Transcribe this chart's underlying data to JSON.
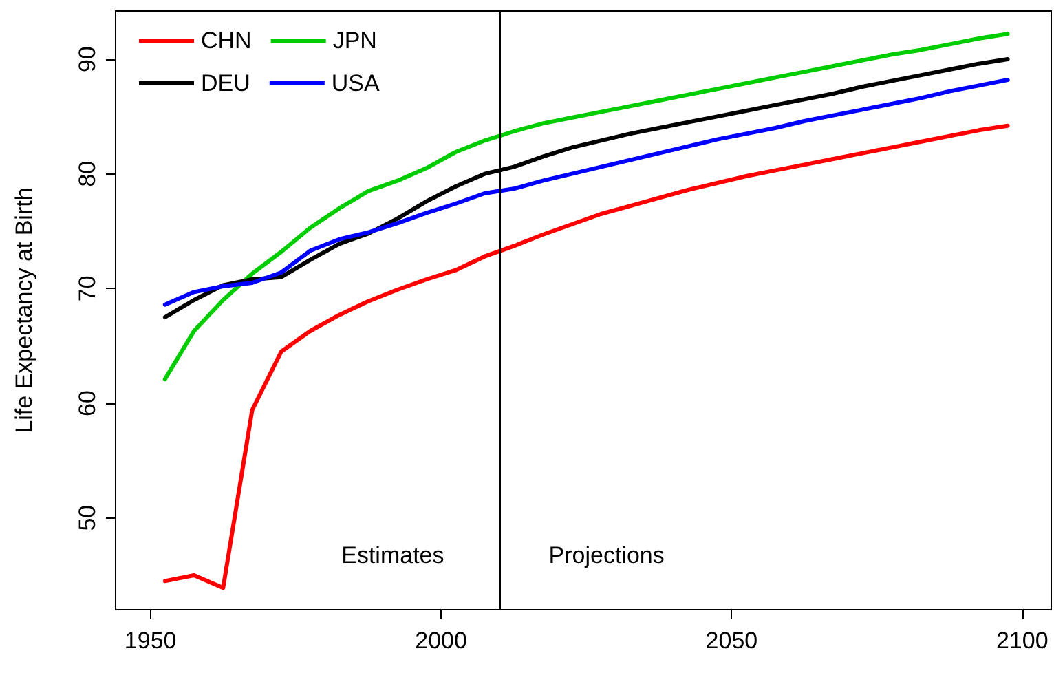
{
  "chart_data": {
    "type": "line",
    "ylabel": "Life Expectancy at Birth",
    "x": [
      1952.5,
      1957.5,
      1962.5,
      1967.5,
      1972.5,
      1977.5,
      1982.5,
      1987.5,
      1992.5,
      1997.5,
      2002.5,
      2007.5,
      2012.5,
      2017.5,
      2022.5,
      2027.5,
      2032.5,
      2037.5,
      2042.5,
      2047.5,
      2052.5,
      2057.5,
      2062.5,
      2067.5,
      2072.5,
      2077.5,
      2082.5,
      2087.5,
      2092.5,
      2097.5
    ],
    "series": [
      {
        "name": "CHN",
        "color": "#ff0000",
        "values": [
          44.5,
          45.0,
          43.9,
          59.4,
          64.5,
          66.3,
          67.7,
          68.9,
          69.9,
          70.8,
          71.6,
          72.8,
          73.7,
          74.7,
          75.6,
          76.5,
          77.2,
          77.9,
          78.6,
          79.2,
          79.8,
          80.3,
          80.8,
          81.3,
          81.8,
          82.3,
          82.8,
          83.3,
          83.8,
          84.2
        ]
      },
      {
        "name": "JPN",
        "color": "#00cd00",
        "values": [
          62.1,
          66.3,
          69.0,
          71.3,
          73.2,
          75.3,
          77.0,
          78.5,
          79.4,
          80.5,
          81.9,
          82.9,
          83.7,
          84.4,
          84.9,
          85.4,
          85.9,
          86.4,
          86.9,
          87.4,
          87.9,
          88.4,
          88.9,
          89.4,
          89.9,
          90.4,
          90.8,
          91.3,
          91.8,
          92.2
        ]
      },
      {
        "name": "DEU",
        "color": "#000000",
        "values": [
          67.5,
          69.0,
          70.3,
          70.8,
          71.0,
          72.5,
          73.9,
          74.8,
          76.1,
          77.6,
          78.9,
          80.0,
          80.6,
          81.5,
          82.3,
          82.9,
          83.5,
          84.0,
          84.5,
          85.0,
          85.5,
          86.0,
          86.5,
          87.0,
          87.6,
          88.1,
          88.6,
          89.1,
          89.6,
          90.0
        ]
      },
      {
        "name": "USA",
        "color": "#0000ff",
        "values": [
          68.6,
          69.7,
          70.2,
          70.5,
          71.4,
          73.3,
          74.3,
          74.9,
          75.7,
          76.6,
          77.4,
          78.3,
          78.7,
          79.4,
          80.0,
          80.6,
          81.2,
          81.8,
          82.4,
          83.0,
          83.5,
          84.0,
          84.6,
          85.1,
          85.6,
          86.1,
          86.6,
          87.2,
          87.7,
          88.2
        ]
      }
    ],
    "xlim": [
      1944,
      2105
    ],
    "xticks": [
      1950,
      2000,
      2050,
      2100
    ],
    "ylim": [
      42,
      94.2
    ],
    "yticks": [
      50,
      60,
      70,
      80,
      90
    ],
    "ref_lines": [
      {
        "axis": "x",
        "value": 2010,
        "color": "#000000"
      }
    ],
    "annotations": [
      "Estimates",
      "Projections"
    ],
    "legend": "top left",
    "grid": false,
    "marker": "none",
    "line_style": "solid"
  }
}
